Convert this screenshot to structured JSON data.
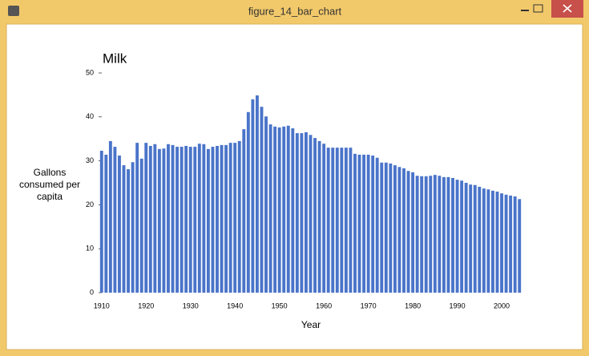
{
  "window": {
    "title": "figure_14_bar_chart"
  },
  "chart_data": {
    "type": "bar",
    "title": "Milk",
    "xlabel": "Year",
    "ylabel": "Gallons consumed per capita",
    "color": "#4a74c9",
    "x": [
      1910,
      1911,
      1912,
      1913,
      1914,
      1915,
      1916,
      1917,
      1918,
      1919,
      1920,
      1921,
      1922,
      1923,
      1924,
      1925,
      1926,
      1927,
      1928,
      1929,
      1930,
      1931,
      1932,
      1933,
      1934,
      1935,
      1936,
      1937,
      1938,
      1939,
      1940,
      1941,
      1942,
      1943,
      1944,
      1945,
      1946,
      1947,
      1948,
      1949,
      1950,
      1951,
      1952,
      1953,
      1954,
      1955,
      1956,
      1957,
      1958,
      1959,
      1960,
      1961,
      1962,
      1963,
      1964,
      1965,
      1966,
      1967,
      1968,
      1969,
      1970,
      1971,
      1972,
      1973,
      1974,
      1975,
      1976,
      1977,
      1978,
      1979,
      1980,
      1981,
      1982,
      1983,
      1984,
      1985,
      1986,
      1987,
      1988,
      1989,
      1990,
      1991,
      1992,
      1993,
      1994,
      1995,
      1996,
      1997,
      1998,
      1999,
      2000,
      2001,
      2002,
      2003,
      2004
    ],
    "values": [
      32.3,
      31.4,
      34.5,
      33.2,
      31.2,
      29,
      28.1,
      29.7,
      34.1,
      30.5,
      34.1,
      33.4,
      33.8,
      32.7,
      32.8,
      33.8,
      33.6,
      33.2,
      33.2,
      33.4,
      33.2,
      33.2,
      33.9,
      33.8,
      32.7,
      33.2,
      33.4,
      33.6,
      33.6,
      34.1,
      34.1,
      34.5,
      37.2,
      41.1,
      44,
      44.9,
      42.3,
      40.1,
      38.3,
      37.8,
      37.6,
      37.8,
      38,
      37.4,
      36.3,
      36.3,
      36.5,
      35.9,
      35.2,
      34.5,
      33.9,
      33,
      33,
      33,
      33,
      33,
      33,
      31.6,
      31.4,
      31.4,
      31.4,
      31.2,
      30.7,
      29.6,
      29.6,
      29.4,
      29,
      28.6,
      28.3,
      27.7,
      27.4,
      26.6,
      26.5,
      26.5,
      26.6,
      26.8,
      26.6,
      26.3,
      26.3,
      26.1,
      25.7,
      25.5,
      25,
      24.6,
      24.5,
      24.1,
      23.7,
      23.5,
      23.2,
      23,
      22.6,
      22.3,
      22.1,
      21.9,
      21.3
    ],
    "xlim": [
      1909.5,
      2004.5
    ],
    "xticks": [
      1910,
      1920,
      1930,
      1940,
      1950,
      1960,
      1970,
      1980,
      1990,
      2000
    ],
    "ylim": [
      0,
      50
    ],
    "yticks": [
      0,
      10,
      20,
      30,
      40,
      50
    ],
    "grid": false
  }
}
